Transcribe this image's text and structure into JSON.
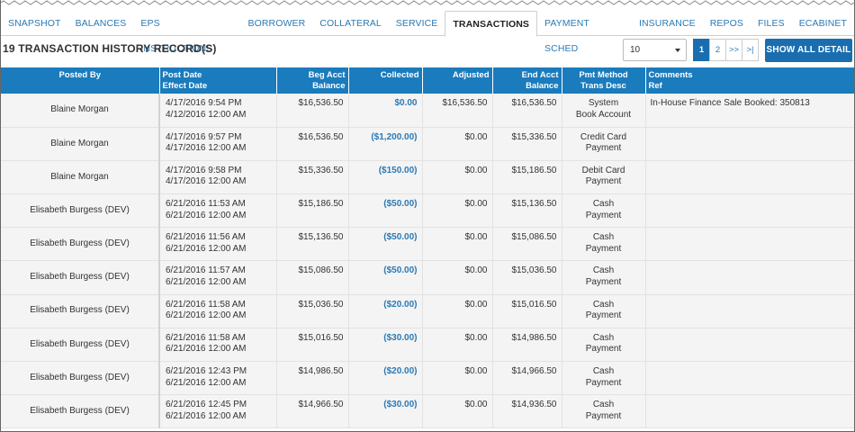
{
  "tabs": [
    {
      "label": "SNAPSHOT",
      "active": false
    },
    {
      "label": "BALANCES",
      "active": false
    },
    {
      "label": "EPS INSTRUCTIONS",
      "active": false
    },
    {
      "label": "BORROWER",
      "active": false
    },
    {
      "label": "COLLATERAL",
      "active": false
    },
    {
      "label": "SERVICE",
      "active": false
    },
    {
      "label": "TRANSACTIONS",
      "active": true
    },
    {
      "label": "PAYMENT SCHED",
      "active": false
    },
    {
      "label": "INSURANCE",
      "active": false
    },
    {
      "label": "REPOS",
      "active": false
    },
    {
      "label": "FILES",
      "active": false
    },
    {
      "label": "ECABINET",
      "active": false
    }
  ],
  "header": {
    "record_count_title": "19 TRANSACTION HISTORY RECORD(S)",
    "page_size": "10",
    "pages": [
      "1",
      "2",
      ">>",
      ">|"
    ],
    "current_page": "1",
    "show_all_label": "SHOW ALL DETAIL"
  },
  "colors": {
    "accent": "#1a7bbd",
    "link": "#2a7ab5"
  },
  "table": {
    "columns": [
      {
        "key": "posted_by",
        "line1": "Posted By",
        "line2": ""
      },
      {
        "key": "date",
        "line1": "Post Date",
        "line2": "Effect Date"
      },
      {
        "key": "beg",
        "line1": "Beg Acct",
        "line2": "Balance"
      },
      {
        "key": "collected",
        "line1": "Collected",
        "line2": ""
      },
      {
        "key": "adjusted",
        "line1": "Adjusted",
        "line2": ""
      },
      {
        "key": "end",
        "line1": "End Acct",
        "line2": "Balance"
      },
      {
        "key": "pmt",
        "line1": "Pmt Method",
        "line2": "Trans Desc"
      },
      {
        "key": "comments",
        "line1": "Comments",
        "line2": "Ref"
      }
    ],
    "rows": [
      {
        "posted_by": "Blaine Morgan",
        "post_date": "4/17/2016 9:54 PM",
        "effect_date": "4/12/2016 12:00 AM",
        "beg": "$16,536.50",
        "collected": "$0.00",
        "adjusted": "$16,536.50",
        "end": "$16,536.50",
        "pmt1": "System",
        "pmt2": "Book Account",
        "comment": "In-House Finance Sale Booked: 350813"
      },
      {
        "posted_by": "Blaine Morgan",
        "post_date": "4/17/2016 9:57 PM",
        "effect_date": "4/17/2016 12:00 AM",
        "beg": "$16,536.50",
        "collected": "($1,200.00)",
        "adjusted": "$0.00",
        "end": "$15,336.50",
        "pmt1": "Credit Card",
        "pmt2": "Payment",
        "comment": ""
      },
      {
        "posted_by": "Blaine Morgan",
        "post_date": "4/17/2016 9:58 PM",
        "effect_date": "4/17/2016 12:00 AM",
        "beg": "$15,336.50",
        "collected": "($150.00)",
        "adjusted": "$0.00",
        "end": "$15,186.50",
        "pmt1": "Debit Card",
        "pmt2": "Payment",
        "comment": ""
      },
      {
        "posted_by": "Elisabeth Burgess (DEV)",
        "post_date": "6/21/2016 11:53 AM",
        "effect_date": "6/21/2016 12:00 AM",
        "beg": "$15,186.50",
        "collected": "($50.00)",
        "adjusted": "$0.00",
        "end": "$15,136.50",
        "pmt1": "Cash",
        "pmt2": "Payment",
        "comment": ""
      },
      {
        "posted_by": "Elisabeth Burgess (DEV)",
        "post_date": "6/21/2016 11:56 AM",
        "effect_date": "6/21/2016 12:00 AM",
        "beg": "$15,136.50",
        "collected": "($50.00)",
        "adjusted": "$0.00",
        "end": "$15,086.50",
        "pmt1": "Cash",
        "pmt2": "Payment",
        "comment": ""
      },
      {
        "posted_by": "Elisabeth Burgess (DEV)",
        "post_date": "6/21/2016 11:57 AM",
        "effect_date": "6/21/2016 12:00 AM",
        "beg": "$15,086.50",
        "collected": "($50.00)",
        "adjusted": "$0.00",
        "end": "$15,036.50",
        "pmt1": "Cash",
        "pmt2": "Payment",
        "comment": ""
      },
      {
        "posted_by": "Elisabeth Burgess (DEV)",
        "post_date": "6/21/2016 11:58 AM",
        "effect_date": "6/21/2016 12:00 AM",
        "beg": "$15,036.50",
        "collected": "($20.00)",
        "adjusted": "$0.00",
        "end": "$15,016.50",
        "pmt1": "Cash",
        "pmt2": "Payment",
        "comment": ""
      },
      {
        "posted_by": "Elisabeth Burgess (DEV)",
        "post_date": "6/21/2016 11:58 AM",
        "effect_date": "6/21/2016 12:00 AM",
        "beg": "$15,016.50",
        "collected": "($30.00)",
        "adjusted": "$0.00",
        "end": "$14,986.50",
        "pmt1": "Cash",
        "pmt2": "Payment",
        "comment": ""
      },
      {
        "posted_by": "Elisabeth Burgess (DEV)",
        "post_date": "6/21/2016 12:43 PM",
        "effect_date": "6/21/2016 12:00 AM",
        "beg": "$14,986.50",
        "collected": "($20.00)",
        "adjusted": "$0.00",
        "end": "$14,966.50",
        "pmt1": "Cash",
        "pmt2": "Payment",
        "comment": ""
      },
      {
        "posted_by": "Elisabeth Burgess (DEV)",
        "post_date": "6/21/2016 12:45 PM",
        "effect_date": "6/21/2016 12:00 AM",
        "beg": "$14,966.50",
        "collected": "($30.00)",
        "adjusted": "$0.00",
        "end": "$14,936.50",
        "pmt1": "Cash",
        "pmt2": "Payment",
        "comment": ""
      }
    ]
  }
}
